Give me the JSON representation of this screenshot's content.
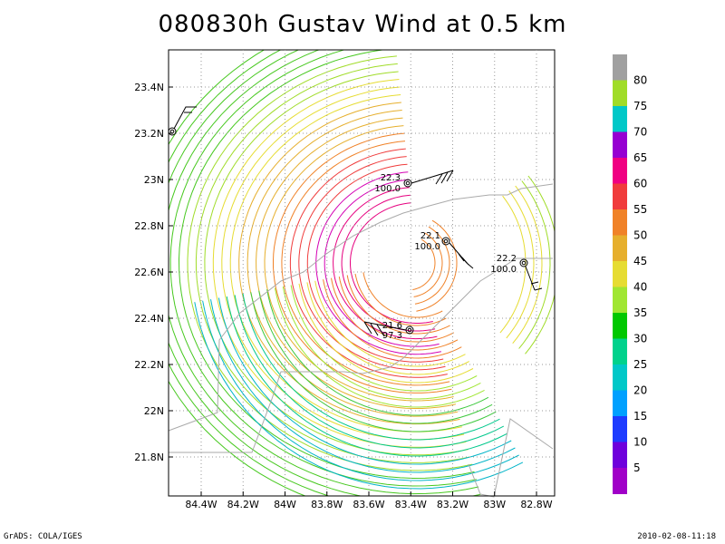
{
  "title": "080830h Gustav Wind at 0.5 km",
  "axes": {
    "lon_ticks": [
      "84.4W",
      "84.2W",
      "84W",
      "83.8W",
      "83.6W",
      "83.4W",
      "83.2W",
      "83W",
      "82.8W"
    ],
    "lat_ticks": [
      "23.4N",
      "23.2N",
      "23N",
      "22.8N",
      "22.6N",
      "22.4N",
      "22.2N",
      "22N",
      "21.8N"
    ]
  },
  "stations": [
    {
      "top": "22.3",
      "bottom": "100.0"
    },
    {
      "top": "22.1",
      "bottom": "100.0"
    },
    {
      "top": "22.2",
      "bottom": "100.0"
    },
    {
      "top": "21.6",
      "bottom": "97.3"
    }
  ],
  "colorbar": {
    "labels": [
      "80",
      "75",
      "70",
      "65",
      "60",
      "55",
      "50",
      "45",
      "40",
      "35",
      "30",
      "25",
      "20",
      "15",
      "10",
      "5"
    ],
    "colors": [
      "#a0a0a0",
      "#a0dc28",
      "#00c8c8",
      "#9600d2",
      "#f00082",
      "#f03c3c",
      "#f08228",
      "#e6af2d",
      "#e6dc32",
      "#a0e632",
      "#00c800",
      "#00d28c",
      "#00c8c8",
      "#00a0ff",
      "#1e3cff",
      "#6e00dc",
      "#a000c8"
    ]
  },
  "footer": {
    "left": "GrADS: COLA/IGES",
    "right": "2010-02-08-11:18"
  }
}
